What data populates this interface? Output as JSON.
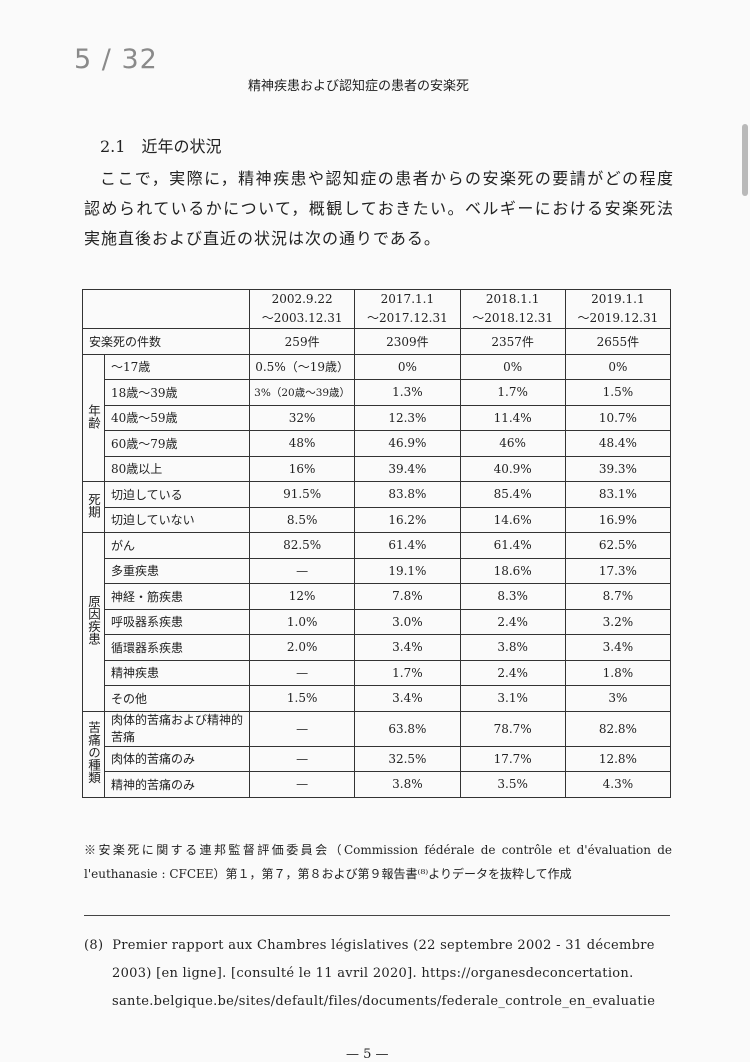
{
  "viewer": {
    "page_indicator": "5 / 32"
  },
  "running_header": "精神疾患および認知症の患者の安楽死",
  "section": {
    "heading": "2.1　近年の状況",
    "paragraph": "ここで，実際に，精神疾患や認知症の患者からの安楽死の要請がどの程度認められているかについて，概観しておきたい。ベルギーにおける安楽死法実施直後および直近の状況は次の通りである。"
  },
  "table": {
    "columns": [
      {
        "line1": "2002.9.22",
        "line2": "～2003.12.31"
      },
      {
        "line1": "2017.1.1",
        "line2": "～2017.12.31"
      },
      {
        "line1": "2018.1.1",
        "line2": "～2018.12.31"
      },
      {
        "line1": "2019.1.1",
        "line2": "～2019.12.31"
      }
    ],
    "count_row": {
      "label": "安楽死の件数",
      "values": [
        "259件",
        "2309件",
        "2357件",
        "2655件"
      ]
    },
    "groups": {
      "age": "年齢",
      "death": "死期",
      "cause": "原因疾患",
      "suffering": "苦痛の種類"
    },
    "rows": {
      "age": [
        {
          "label": "～17歳",
          "values": [
            "0.5%（～19歳）",
            "0%",
            "0%",
            "0%"
          ]
        },
        {
          "label": "18歳～39歳",
          "values": [
            "3%（20歳～39歳）",
            "1.3%",
            "1.7%",
            "1.5%"
          ]
        },
        {
          "label": "40歳～59歳",
          "values": [
            "32%",
            "12.3%",
            "11.4%",
            "10.7%"
          ]
        },
        {
          "label": "60歳～79歳",
          "values": [
            "48%",
            "46.9%",
            "46%",
            "48.4%"
          ]
        },
        {
          "label": "80歳以上",
          "values": [
            "16%",
            "39.4%",
            "40.9%",
            "39.3%"
          ]
        }
      ],
      "death": [
        {
          "label": "切迫している",
          "values": [
            "91.5%",
            "83.8%",
            "85.4%",
            "83.1%"
          ]
        },
        {
          "label": "切迫していない",
          "values": [
            "8.5%",
            "16.2%",
            "14.6%",
            "16.9%"
          ]
        }
      ],
      "cause": [
        {
          "label": "がん",
          "values": [
            "82.5%",
            "61.4%",
            "61.4%",
            "62.5%"
          ]
        },
        {
          "label": "多重疾患",
          "values": [
            "—",
            "19.1%",
            "18.6%",
            "17.3%"
          ]
        },
        {
          "label": "神経・筋疾患",
          "values": [
            "12%",
            "7.8%",
            "8.3%",
            "8.7%"
          ]
        },
        {
          "label": "呼吸器系疾患",
          "values": [
            "1.0%",
            "3.0%",
            "2.4%",
            "3.2%"
          ]
        },
        {
          "label": "循環器系疾患",
          "values": [
            "2.0%",
            "3.4%",
            "3.8%",
            "3.4%"
          ]
        },
        {
          "label": "精神疾患",
          "values": [
            "—",
            "1.7%",
            "2.4%",
            "1.8%"
          ]
        },
        {
          "label": "その他",
          "values": [
            "1.5%",
            "3.4%",
            "3.1%",
            "3%"
          ]
        }
      ],
      "suffering": [
        {
          "label": "肉体的苦痛および精神的苦痛",
          "values": [
            "—",
            "63.8%",
            "78.7%",
            "82.8%"
          ]
        },
        {
          "label": "肉体的苦痛のみ",
          "values": [
            "—",
            "32.5%",
            "17.7%",
            "12.8%"
          ]
        },
        {
          "label": "精神的苦痛のみ",
          "values": [
            "—",
            "3.8%",
            "3.5%",
            "4.3%"
          ]
        }
      ]
    },
    "note": "※安楽死に関する連邦監督評価委員会（Commission fédérale de contrôle et d'évaluation de l'euthanasie : CFCEE）第１，第７，第８および第９報告書⁽⁸⁾よりデータを抜粋して作成"
  },
  "footnote": {
    "marker": "(8)",
    "line1": "Premier rapport aux Chambres législatives (22 septembre 2002 - 31 décembre",
    "line2": "2003) [en ligne]. [consulté le 11 avril 2020]. https://organesdeconcertation.",
    "line3": "sante.belgique.be/sites/default/files/documents/federale_controle_en_evaluatie"
  },
  "page_number": "— 5 —"
}
